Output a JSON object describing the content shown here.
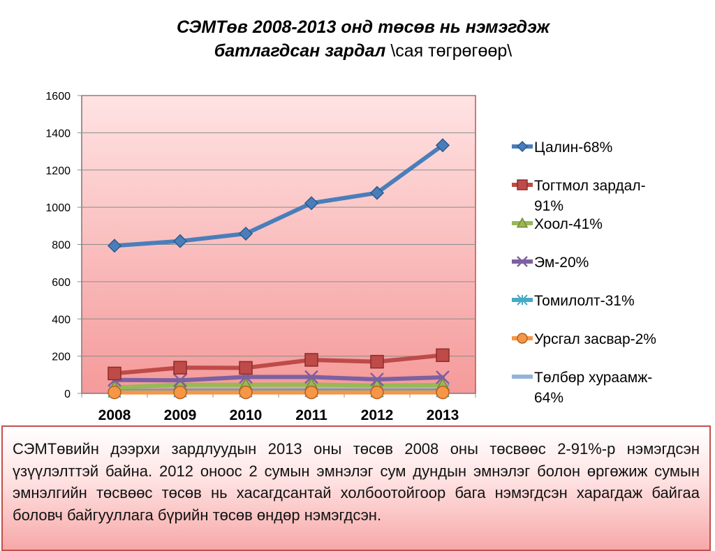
{
  "title": {
    "line1": "СЭМТөв 2008-2013 онд төсөв нь нэмэгдэж",
    "line2_bold": "батлагдсан зардал ",
    "line2_normal": "\\сая төгрөгөөр\\"
  },
  "caption": "СЭМТөвийн дээрхи зардлуудын 2013 оны төсөв 2008 оны төсвөөс 2-91%-р нэмэгдсэн үзүүлэлттэй байна. 2012 оноос 2 сумын эмнэлэг сум дундын эмнэлэг болон өргөжиж сумын эмнэлгийн төсвөөс төсөв нь хасагдсантай холбоотойгоор бага нэмэгдсэн харагдаж байгаа боловч байгууллага бүрийн төсөв өндөр нэмэгдсэн.",
  "colors": {
    "plot_bg_top": "#ffe3e3",
    "plot_bg_bottom": "#f59a9a",
    "plot_border": "#c0504d"
  },
  "chart_data": {
    "type": "line",
    "categories": [
      "2008",
      "2009",
      "2010",
      "2011",
      "2012",
      "2013"
    ],
    "ylim": [
      0,
      1600
    ],
    "yticks": [
      "0",
      "200",
      "400",
      "600",
      "800",
      "1000",
      "1200",
      "1400",
      "1600"
    ],
    "grid": true,
    "legend_position": "right",
    "series": [
      {
        "name": "Цалин-68%",
        "color": "#4a7ebb",
        "marker": "diamond",
        "values": [
          793,
          818,
          858,
          1022,
          1077,
          1333
        ]
      },
      {
        "name": "Тогтмол зардал-91%",
        "color": "#be4b48",
        "marker": "square",
        "values": [
          107,
          138,
          137,
          180,
          170,
          205
        ]
      },
      {
        "name": "Хоол-41%",
        "color": "#98b954",
        "marker": "triangle",
        "values": [
          32,
          46,
          46,
          47,
          42,
          45
        ]
      },
      {
        "name": "Эм-20%",
        "color": "#7d60a0",
        "marker": "x",
        "values": [
          72,
          70,
          88,
          88,
          75,
          86
        ]
      },
      {
        "name": "Томилолт-31%",
        "color": "#46aac5",
        "marker": "star",
        "values": [
          12,
          14,
          14,
          15,
          14,
          15
        ]
      },
      {
        "name": "Урсгал засвар-2%",
        "color": "#f79646",
        "marker": "circle",
        "values": [
          5,
          5,
          5,
          5,
          5,
          5
        ]
      },
      {
        "name": "Төлбөр хураамж-64%",
        "color": "#95b3d7",
        "marker": "dash",
        "values": [
          8,
          10,
          12,
          13,
          12,
          13
        ]
      }
    ]
  }
}
